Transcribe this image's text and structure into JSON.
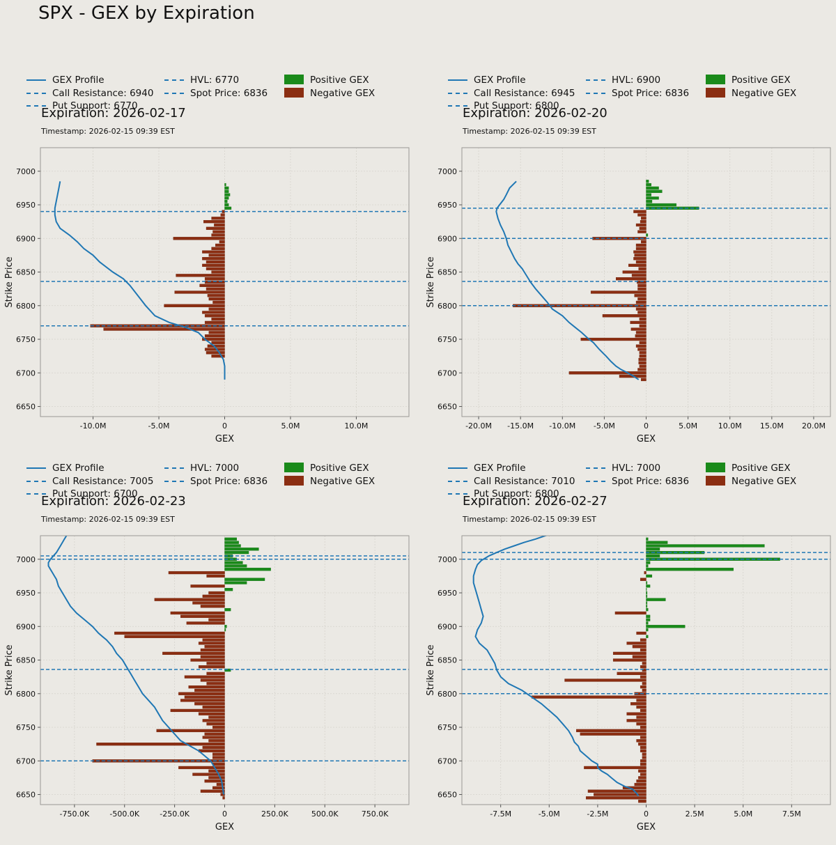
{
  "title": "SPX - GEX by Expiration",
  "legend_labels": {
    "profile": "GEX Profile",
    "positive": "Positive GEX",
    "negative": "Negative GEX"
  },
  "colors": {
    "background": "#ebe9e4",
    "profile": "#1f77b4",
    "positive": "#1a8a1a",
    "negative": "#8b2e12"
  },
  "chart_data": [
    {
      "type": "bar",
      "orientation": "horizontal",
      "expiration_title": "Expiration: 2026-02-17",
      "timestamp": "Timestamp: 2026-02-15 09:39 EST",
      "xlabel": "GEX",
      "ylabel": "Strike Price",
      "xlim": [
        -14000000,
        14000000
      ],
      "ylim": [
        6635,
        7035
      ],
      "xticks": [
        -10000000,
        -5000000,
        0,
        5000000,
        10000000
      ],
      "xtick_labels": [
        "-10.0M",
        "-5.0M",
        "0",
        "5.0M",
        "10.0M"
      ],
      "yticks": [
        6650,
        6700,
        6750,
        6800,
        6850,
        6900,
        6950,
        7000
      ],
      "bar_height": 4,
      "legend_lines": [
        "Call Resistance: 6940",
        "Put Support: 6770",
        "HVL: 6770",
        "Spot Price: 6836"
      ],
      "levels": [
        6940,
        6770,
        6836
      ],
      "strikes": [
        6725,
        6730,
        6735,
        6740,
        6745,
        6750,
        6755,
        6760,
        6765,
        6770,
        6775,
        6780,
        6785,
        6790,
        6795,
        6800,
        6805,
        6810,
        6815,
        6820,
        6825,
        6830,
        6835,
        6840,
        6845,
        6850,
        6855,
        6860,
        6865,
        6870,
        6875,
        6880,
        6885,
        6890,
        6895,
        6900,
        6905,
        6910,
        6915,
        6920,
        6925,
        6930,
        6935,
        6940,
        6945,
        6950,
        6955,
        6960,
        6965,
        6970,
        6975,
        6980
      ],
      "gex": [
        -1000000,
        -1400000,
        -1500000,
        -1300000,
        -1000000,
        -1700000,
        -1500000,
        -1200000,
        -9200000,
        -10200000,
        -1500000,
        -1000000,
        -1500000,
        -1700000,
        -1200000,
        -4600000,
        -900000,
        -1200000,
        -1300000,
        -3800000,
        -1400000,
        -1900000,
        -1500000,
        -1500000,
        -3700000,
        -1000000,
        -1400000,
        -1700000,
        -1400000,
        -1700000,
        -1200000,
        -1700000,
        -1000000,
        -700000,
        -400000,
        -3900000,
        -1000000,
        -900000,
        -1400000,
        -800000,
        -1600000,
        -1000000,
        -300000,
        -200000,
        500000,
        300000,
        200000,
        300000,
        400000,
        300000,
        300000,
        100000
      ],
      "profile_x": [
        -12500000,
        -12600000,
        -12700000,
        -12800000,
        -12900000,
        -12900000,
        -12800000,
        -12500000,
        -11800000,
        -11200000,
        -10700000,
        -10000000,
        -9500000,
        -8500000,
        -7700000,
        -7200000,
        -6600000,
        -6000000,
        -5300000,
        -4200000,
        -3000000,
        -2000000,
        -1500000,
        -800000,
        -400000,
        -100000,
        0,
        0
      ],
      "profile_y": [
        6985,
        6975,
        6965,
        6955,
        6945,
        6935,
        6925,
        6915,
        6905,
        6895,
        6885,
        6875,
        6865,
        6850,
        6840,
        6830,
        6815,
        6800,
        6785,
        6775,
        6768,
        6760,
        6750,
        6740,
        6730,
        6720,
        6710,
        6690
      ]
    },
    {
      "type": "bar",
      "orientation": "horizontal",
      "expiration_title": "Expiration: 2026-02-20",
      "timestamp": "Timestamp: 2026-02-15 09:39 EST",
      "xlabel": "GEX",
      "ylabel": "Strike Price",
      "xlim": [
        -22000000,
        22000000
      ],
      "ylim": [
        6635,
        7035
      ],
      "xticks": [
        -20000000,
        -15000000,
        -10000000,
        -5000000,
        0,
        5000000,
        10000000,
        15000000,
        20000000
      ],
      "xtick_labels": [
        "-20.0M",
        "-15.0M",
        "-10.0M",
        "-5.0M",
        "0",
        "5.0M",
        "10.0M",
        "15.0M",
        "20.0M"
      ],
      "yticks": [
        6650,
        6700,
        6750,
        6800,
        6850,
        6900,
        6950,
        7000
      ],
      "bar_height": 4,
      "legend_lines": [
        "Call Resistance: 6945",
        "Put Support: 6800",
        "HVL: 6900",
        "Spot Price: 6836"
      ],
      "levels": [
        6945,
        6800,
        6900,
        6836
      ],
      "strikes": [
        6690,
        6695,
        6700,
        6705,
        6710,
        6715,
        6720,
        6725,
        6730,
        6735,
        6740,
        6745,
        6750,
        6755,
        6760,
        6765,
        6770,
        6775,
        6780,
        6785,
        6790,
        6795,
        6800,
        6805,
        6810,
        6815,
        6820,
        6825,
        6830,
        6835,
        6840,
        6845,
        6850,
        6855,
        6860,
        6865,
        6870,
        6875,
        6880,
        6885,
        6890,
        6895,
        6900,
        6905,
        6910,
        6915,
        6920,
        6925,
        6930,
        6935,
        6940,
        6945,
        6950,
        6955,
        6960,
        6965,
        6970,
        6975,
        6980,
        6985
      ],
      "gex": [
        -600000,
        -3200000,
        -9200000,
        -1000000,
        -800000,
        -900000,
        -900000,
        -800000,
        -800000,
        -1000000,
        -1200000,
        -800000,
        -7800000,
        -1300000,
        -1200000,
        -1800000,
        -800000,
        -1900000,
        -800000,
        -5200000,
        -1000000,
        -1200000,
        -15900000,
        -1200000,
        -1000000,
        -1400000,
        -6600000,
        -1000000,
        -1000000,
        -1100000,
        -3600000,
        -1700000,
        -2800000,
        -900000,
        -2100000,
        -1200000,
        -1500000,
        -1400000,
        -1500000,
        -1200000,
        -1200000,
        -600000,
        -6400000,
        200000,
        -1000000,
        -800000,
        -1200000,
        -700000,
        -600000,
        -1000000,
        -1500000,
        6300000,
        3600000,
        700000,
        1500000,
        600000,
        1900000,
        1500000,
        600000,
        300000
      ],
      "profile_x": [
        -900000,
        -1500000,
        -2200000,
        -3000000,
        -3600000,
        -4200000,
        -4800000,
        -5600000,
        -6300000,
        -7000000,
        -7700000,
        -8500000,
        -9200000,
        -10000000,
        -11200000,
        -11800000,
        -12500000,
        -13200000,
        -13800000,
        -14300000,
        -14800000,
        -15300000,
        -15700000,
        -16100000,
        -16500000,
        -16700000,
        -17000000,
        -17400000,
        -17700000,
        -17900000,
        -17800000,
        -17500000,
        -17000000,
        -16700000,
        -16300000,
        -15500000
      ],
      "profile_y": [
        6690,
        6695,
        6700,
        6705,
        6710,
        6717,
        6725,
        6735,
        6745,
        6752,
        6760,
        6768,
        6775,
        6785,
        6795,
        6805,
        6815,
        6825,
        6835,
        6845,
        6855,
        6862,
        6870,
        6880,
        6890,
        6900,
        6910,
        6920,
        6930,
        6940,
        6945,
        6950,
        6958,
        6965,
        6975,
        6985
      ]
    },
    {
      "type": "bar",
      "orientation": "horizontal",
      "expiration_title": "Expiration: 2026-02-23",
      "timestamp": "Timestamp: 2026-02-15 09:39 EST",
      "xlabel": "GEX",
      "ylabel": "Strike Price",
      "xlim": [
        -920000,
        920000
      ],
      "ylim": [
        6635,
        7035
      ],
      "xticks": [
        -750000,
        -500000,
        -250000,
        0,
        250000,
        500000,
        750000
      ],
      "xtick_labels": [
        "-750.0K",
        "-500.0K",
        "-250.0K",
        "0",
        "250.0K",
        "500.0K",
        "750.0K"
      ],
      "yticks": [
        6650,
        6700,
        6750,
        6800,
        6850,
        6900,
        6950,
        7000
      ],
      "bar_height": 4,
      "legend_lines": [
        "Call Resistance: 7005",
        "Put Support: 6700",
        "HVL: 7000",
        "Spot Price: 6836"
      ],
      "levels": [
        7005,
        6700,
        7000,
        6836
      ],
      "strikes": [
        6645,
        6650,
        6655,
        6660,
        6665,
        6670,
        6675,
        6680,
        6685,
        6690,
        6695,
        6700,
        6705,
        6710,
        6715,
        6720,
        6725,
        6730,
        6735,
        6740,
        6745,
        6750,
        6755,
        6760,
        6765,
        6770,
        6775,
        6780,
        6785,
        6790,
        6795,
        6800,
        6805,
        6810,
        6815,
        6820,
        6825,
        6830,
        6835,
        6840,
        6845,
        6850,
        6855,
        6860,
        6865,
        6870,
        6875,
        6880,
        6885,
        6890,
        6895,
        6900,
        6905,
        6910,
        6915,
        6920,
        6925,
        6930,
        6935,
        6940,
        6945,
        6950,
        6955,
        6960,
        6965,
        6970,
        6975,
        6980,
        6985,
        6990,
        6995,
        7000,
        7005,
        7010,
        7015,
        7020,
        7025,
        7030
      ],
      "gex": [
        -10000,
        -20000,
        -120000,
        -60000,
        -40000,
        -100000,
        -80000,
        -160000,
        -80000,
        -230000,
        -60000,
        -660000,
        -60000,
        -60000,
        -130000,
        -110000,
        -640000,
        -80000,
        -110000,
        -100000,
        -340000,
        -60000,
        -90000,
        -110000,
        -80000,
        -130000,
        -270000,
        -110000,
        -150000,
        -220000,
        -200000,
        -230000,
        -150000,
        -180000,
        -90000,
        -120000,
        -200000,
        -90000,
        30000,
        -130000,
        -90000,
        -170000,
        -120000,
        -310000,
        -120000,
        -100000,
        -130000,
        -110000,
        -500000,
        -550000,
        5000,
        10000,
        -190000,
        -80000,
        -220000,
        -270000,
        30000,
        -120000,
        -160000,
        -350000,
        -110000,
        -80000,
        40000,
        -170000,
        110000,
        200000,
        -90000,
        -280000,
        230000,
        110000,
        90000,
        60000,
        40000,
        120000,
        170000,
        80000,
        70000,
        60000
      ],
      "profile_x": [
        -5000,
        -10000,
        -15000,
        -30000,
        -50000,
        -70000,
        -90000,
        -110000,
        -130000,
        -160000,
        -190000,
        -220000,
        -250000,
        -280000,
        -310000,
        -330000,
        -350000,
        -380000,
        -410000,
        -430000,
        -450000,
        -470000,
        -490000,
        -510000,
        -540000,
        -560000,
        -590000,
        -610000,
        -630000,
        -660000,
        -700000,
        -740000,
        -770000,
        -790000,
        -810000,
        -830000,
        -840000,
        -850000,
        -860000,
        -870000,
        -880000,
        -880000,
        -870000,
        -840000,
        -820000,
        -800000,
        -780000
      ],
      "profile_y": [
        6650,
        6660,
        6670,
        6680,
        6690,
        6700,
        6705,
        6710,
        6715,
        6720,
        6725,
        6730,
        6740,
        6750,
        6760,
        6770,
        6780,
        6790,
        6800,
        6810,
        6820,
        6830,
        6840,
        6850,
        6860,
        6870,
        6880,
        6885,
        6890,
        6900,
        6910,
        6920,
        6930,
        6940,
        6950,
        6960,
        6970,
        6975,
        6980,
        6985,
        6990,
        6995,
        7000,
        7010,
        7020,
        7030,
        7040
      ]
    },
    {
      "type": "bar",
      "orientation": "horizontal",
      "expiration_title": "Expiration: 2026-02-27",
      "timestamp": "Timestamp: 2026-02-15 09:39 EST",
      "xlabel": "GEX",
      "ylabel": "Strike Price",
      "xlim": [
        -9500000,
        9500000
      ],
      "ylim": [
        6635,
        7035
      ],
      "xticks": [
        -7500000,
        -5000000,
        -2500000,
        0,
        2500000,
        5000000,
        7500000
      ],
      "xtick_labels": [
        "-7.5M",
        "-5.0M",
        "-2.5M",
        "0",
        "2.5M",
        "5.0M",
        "7.5M"
      ],
      "yticks": [
        6650,
        6700,
        6750,
        6800,
        6850,
        6900,
        6950,
        7000
      ],
      "bar_height": 4,
      "legend_lines": [
        "Call Resistance: 7010",
        "Put Support: 6800",
        "HVL: 7000",
        "Spot Price: 6836"
      ],
      "levels": [
        7010,
        6800,
        7000,
        6836
      ],
      "strikes": [
        6640,
        6645,
        6650,
        6655,
        6660,
        6665,
        6670,
        6675,
        6680,
        6685,
        6690,
        6695,
        6700,
        6705,
        6710,
        6715,
        6720,
        6725,
        6730,
        6735,
        6740,
        6745,
        6750,
        6755,
        6760,
        6765,
        6770,
        6775,
        6780,
        6785,
        6790,
        6795,
        6800,
        6805,
        6810,
        6815,
        6820,
        6825,
        6830,
        6835,
        6840,
        6845,
        6850,
        6855,
        6860,
        6865,
        6870,
        6875,
        6880,
        6885,
        6890,
        6895,
        6900,
        6905,
        6910,
        6915,
        6920,
        6925,
        6930,
        6935,
        6940,
        6945,
        6950,
        6955,
        6960,
        6965,
        6970,
        6975,
        6980,
        6985,
        6990,
        6995,
        7000,
        7005,
        7010,
        7015,
        7020,
        7025,
        7030
      ],
      "gex": [
        -400000,
        -3100000,
        -2700000,
        -3000000,
        -1200000,
        -600000,
        -500000,
        -400000,
        -300000,
        -400000,
        -3200000,
        -300000,
        -300000,
        -200000,
        -200000,
        -300000,
        -300000,
        -400000,
        -500000,
        -300000,
        -3400000,
        -3600000,
        -300000,
        -500000,
        -1000000,
        -500000,
        -1000000,
        -300000,
        -500000,
        -800000,
        -500000,
        -5900000,
        -600000,
        -200000,
        -300000,
        -200000,
        -4200000,
        -300000,
        -1500000,
        -200000,
        -300000,
        -200000,
        -1700000,
        -700000,
        -1700000,
        -300000,
        -700000,
        -1000000,
        -300000,
        100000,
        -500000,
        100000,
        2000000,
        100000,
        200000,
        200000,
        -1600000,
        100000,
        50000,
        50000,
        1000000,
        50000,
        50000,
        20000,
        200000,
        50000,
        -300000,
        300000,
        -100000,
        4500000,
        100000,
        200000,
        6900000,
        700000,
        3000000,
        700000,
        6100000,
        1100000,
        100000
      ],
      "profile_x": [
        -400000,
        -500000,
        -700000,
        -1100000,
        -1500000,
        -1800000,
        -2000000,
        -2300000,
        -2500000,
        -2500000,
        -2800000,
        -3000000,
        -3200000,
        -3400000,
        -3500000,
        -3700000,
        -3800000,
        -4000000,
        -4300000,
        -4600000,
        -5000000,
        -5400000,
        -5900000,
        -6400000,
        -7100000,
        -7500000,
        -7700000,
        -7800000,
        -8000000,
        -8200000,
        -8600000,
        -8800000,
        -8700000,
        -8500000,
        -8400000,
        -8500000,
        -8600000,
        -8700000,
        -8800000,
        -8900000,
        -8900000,
        -8800000,
        -8700000,
        -8500000,
        -8100000,
        -7700000,
        -7300000,
        -6800000,
        -6300000,
        -5700000,
        -5200000,
        -4500000,
        -4000000
      ],
      "profile_y": [
        6648,
        6652,
        6658,
        6662,
        6668,
        6675,
        6680,
        6685,
        6690,
        6695,
        6700,
        6705,
        6710,
        6715,
        6722,
        6728,
        6735,
        6745,
        6755,
        6765,
        6775,
        6785,
        6795,
        6805,
        6815,
        6825,
        6835,
        6845,
        6855,
        6865,
        6875,
        6885,
        6895,
        6905,
        6915,
        6925,
        6935,
        6945,
        6955,
        6965,
        6975,
        6985,
        6992,
        6998,
        7005,
        7010,
        7015,
        7020,
        7025,
        7030,
        7035,
        7040,
        7045
      ]
    }
  ]
}
